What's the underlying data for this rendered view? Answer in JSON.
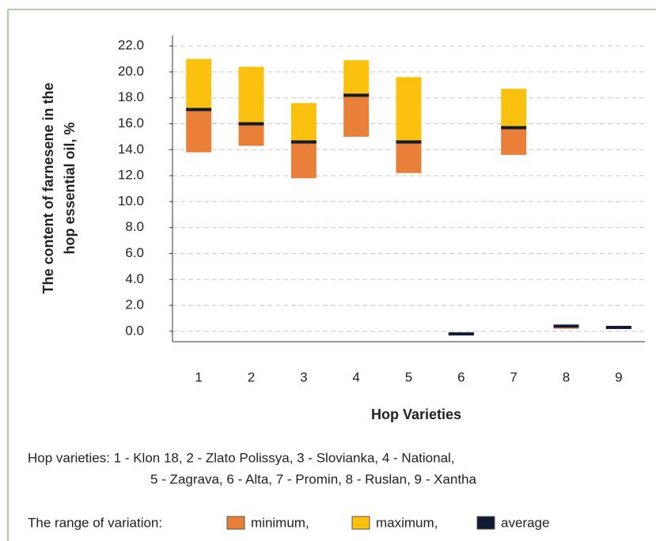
{
  "chart_data": {
    "type": "range",
    "y_label": [
      "The content of farnesene in the",
      "hop essential oil, %"
    ],
    "x_label": "Hop Varieties",
    "categories": [
      "1",
      "2",
      "3",
      "4",
      "5",
      "6",
      "7",
      "8",
      "9"
    ],
    "series": [
      {
        "name": "minimum,",
        "color": "#e8803a",
        "values": [
          13.8,
          14.3,
          11.8,
          15.0,
          12.2,
          -0.3,
          13.6,
          0.2,
          0.2
        ]
      },
      {
        "name": "maximum,",
        "color": "#fbc10e",
        "values": [
          21.0,
          20.4,
          17.6,
          20.9,
          19.6,
          -0.1,
          18.7,
          0.5,
          0.4
        ]
      },
      {
        "name": "average",
        "color": "#111a33",
        "values": [
          17.1,
          16.0,
          14.6,
          18.2,
          14.6,
          -0.2,
          15.7,
          0.4,
          0.3
        ]
      }
    ],
    "ylim": [
      -0.8,
      22.8
    ],
    "yticks": [
      {
        "value": 0,
        "label": "0.0"
      },
      {
        "value": 2,
        "label": "2.0"
      },
      {
        "value": 4,
        "label": "4.0"
      },
      {
        "value": 6,
        "label": "6.0"
      },
      {
        "value": 8,
        "label": "8.0"
      },
      {
        "value": 10,
        "label": "10.0"
      },
      {
        "value": 12,
        "label": "12.0"
      },
      {
        "value": 14,
        "label": "14.0"
      },
      {
        "value": 16,
        "label": "16.0"
      },
      {
        "value": 18,
        "label": "18.0"
      },
      {
        "value": 20,
        "label": "20.0"
      },
      {
        "value": 22,
        "label": "22.0"
      }
    ],
    "grid": true,
    "note": [
      "Hop varieties: 1 - Klon 18, 2 - Zlato Polissya, 3 - Slovianka, 4 - National,",
      "5 - Zagrava, 6 - Alta, 7 - Promin, 8 - Ruslan, 9 - Xantha"
    ],
    "legend_title": "The range of variation:"
  }
}
